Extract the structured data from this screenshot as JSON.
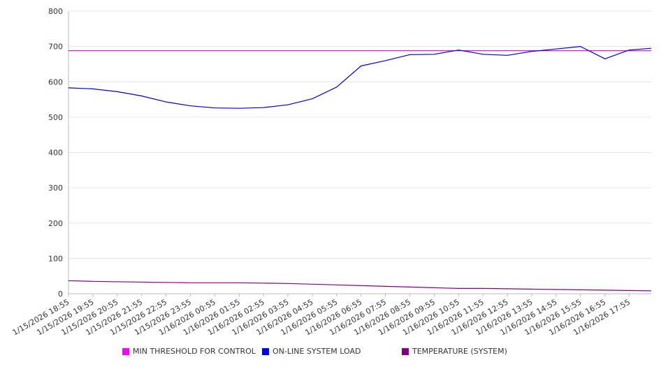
{
  "chart_data": {
    "type": "line",
    "ylim": [
      0,
      800
    ],
    "yticks": [
      0,
      100,
      200,
      300,
      400,
      500,
      600,
      700,
      800
    ],
    "x_tick_labels": [
      "1/15/2026 18:55",
      "1/15/2026 19:55",
      "1/15/2026 20:55",
      "1/15/2026 21:55",
      "1/15/2026 22:55",
      "1/15/2026 23:55",
      "1/16/2026 00:55",
      "1/16/2026 01:55",
      "1/16/2026 02:55",
      "1/16/2026 03:55",
      "1/16/2026 04:55",
      "1/16/2026 05:55",
      "1/16/2026 06:55",
      "1/16/2026 07:55",
      "1/16/2026 08:55",
      "1/16/2026 09:55",
      "1/16/2026 10:55",
      "1/16/2026 11:55",
      "1/16/2026 12:55",
      "1/16/2026 13:55",
      "1/16/2026 14:55",
      "1/16/2026 15:55",
      "1/16/2026 16:55",
      "1/16/2026 17:55"
    ],
    "x_hours": [
      0,
      1,
      2,
      3,
      4,
      5,
      6,
      7,
      8,
      9,
      10,
      11,
      12,
      13,
      14,
      15,
      16,
      17,
      18,
      19,
      20,
      21,
      22,
      23,
      23.9
    ],
    "legend_placement": "bottom",
    "grid": true,
    "series": [
      {
        "name": "MIN THRESHOLD FOR CONTROL",
        "color": "#cc00cc",
        "values": [
          688,
          688,
          688,
          688,
          688,
          688,
          688,
          688,
          688,
          688,
          688,
          688,
          688,
          688,
          688,
          688,
          688,
          688,
          688,
          688,
          688,
          688,
          688,
          688,
          688
        ]
      },
      {
        "name": "ON-LINE SYSTEM LOAD",
        "color": "#0000cc",
        "values": [
          583,
          580,
          572,
          560,
          543,
          532,
          526,
          525,
          527,
          535,
          552,
          585,
          645,
          660,
          677,
          678,
          690,
          678,
          675,
          686,
          693,
          700,
          665,
          690,
          695
        ]
      },
      {
        "name": "TEMPERATURE (SYSTEM)",
        "color": "#800080",
        "values": [
          37,
          35,
          34,
          33,
          32,
          31,
          31,
          31,
          30,
          29,
          27,
          25,
          23,
          21,
          19,
          17,
          15,
          15,
          14,
          13,
          12,
          11,
          10,
          9,
          8
        ]
      }
    ]
  },
  "legend": {
    "items": [
      {
        "label": "MIN THRESHOLD FOR CONTROL",
        "color": "#ff00ff"
      },
      {
        "label": "ON-LINE SYSTEM LOAD",
        "color": "#0000ff"
      },
      {
        "label": "TEMPERATURE (SYSTEM)",
        "color": "#800080"
      }
    ]
  }
}
